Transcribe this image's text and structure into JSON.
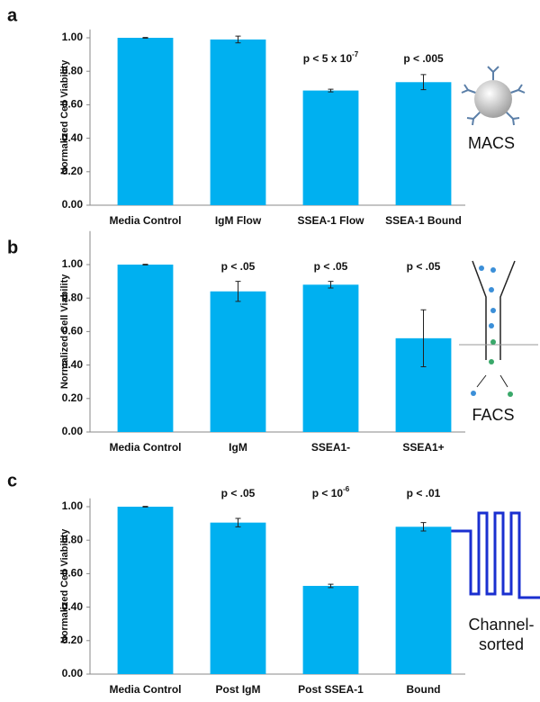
{
  "chart_data": [
    {
      "type": "bar",
      "panel": "a",
      "y_label": "Normalized Cell Viability",
      "color": "#00b0f0",
      "categories": [
        "Media Control",
        "IgM Flow",
        "SSEA-1 Flow",
        "SSEA-1 Bound"
      ],
      "values": [
        1.0,
        0.99,
        0.685,
        0.735
      ],
      "errors": [
        0.002,
        0.02,
        0.008,
        0.045
      ],
      "annotations": [
        null,
        null,
        {
          "text": "p <  5 x 10",
          "sup": "-7"
        },
        {
          "text": "p < .005"
        }
      ],
      "ylim": [
        0,
        1.05
      ],
      "yticks": [
        {
          "value": 0,
          "label": "0.00"
        },
        {
          "value": 0.2,
          "label": "0.20"
        },
        {
          "value": 0.4,
          "label": "0.40"
        },
        {
          "value": 0.6,
          "label": "0.60"
        },
        {
          "value": 0.8,
          "label": "0.80"
        },
        {
          "value": 1,
          "label": "1.00"
        }
      ],
      "icon_label": [
        "MACS"
      ]
    },
    {
      "type": "bar",
      "panel": "b",
      "y_label": "Normalized Cell Viability",
      "color": "#00b0f0",
      "categories": [
        "Media Control",
        "IgM",
        "SSEA1-",
        "SSEA1+"
      ],
      "values": [
        1.0,
        0.84,
        0.88,
        0.56
      ],
      "errors": [
        0.002,
        0.06,
        0.02,
        0.17
      ],
      "annotations": [
        null,
        {
          "text": "p < .05"
        },
        {
          "text": "p < .05"
        },
        {
          "text": "p < .05"
        }
      ],
      "ylim": [
        0,
        1.2
      ],
      "yticks": [
        {
          "value": 0,
          "label": "0.00"
        },
        {
          "value": 0.2,
          "label": "0.20"
        },
        {
          "value": 0.4,
          "label": "0.40"
        },
        {
          "value": 0.6,
          "label": "0.60"
        },
        {
          "value": 0.8,
          "label": "0.80"
        },
        {
          "value": 1,
          "label": "1.00"
        }
      ],
      "icon_label": [
        "FACS"
      ]
    },
    {
      "type": "bar",
      "panel": "c",
      "y_label": "Normalized Cell Viability",
      "color": "#00b0f0",
      "categories": [
        "Media Control",
        "Post IgM",
        "Post SSEA-1",
        "Bound"
      ],
      "values": [
        1.0,
        0.905,
        0.527,
        0.88
      ],
      "errors": [
        0.002,
        0.025,
        0.01,
        0.025
      ],
      "annotations": [
        null,
        {
          "text": "p < .05"
        },
        {
          "text": "p < 10",
          "sup": "-6"
        },
        {
          "text": "p < .01"
        }
      ],
      "ylim": [
        0,
        1.05
      ],
      "yticks": [
        {
          "value": 0,
          "label": "0.00"
        },
        {
          "value": 0.2,
          "label": "0.20"
        },
        {
          "value": 0.4,
          "label": "0.40"
        },
        {
          "value": 0.6,
          "label": "0.60"
        },
        {
          "value": 0.8,
          "label": "0.80"
        },
        {
          "value": 1,
          "label": "1.00"
        }
      ],
      "icon_label": [
        "Channel-",
        "sorted"
      ]
    }
  ]
}
